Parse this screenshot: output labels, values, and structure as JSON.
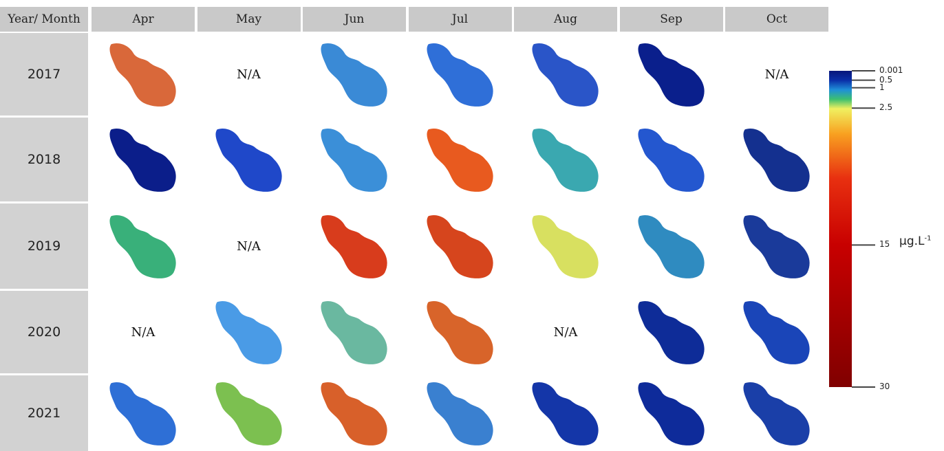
{
  "table": {
    "corner": "Year/ Month",
    "columns": [
      "Apr",
      "May",
      "Jun",
      "Jul",
      "Aug",
      "Sep",
      "Oct"
    ],
    "rows": [
      {
        "year": "2017",
        "cells": [
          {
            "color": "#d9683a"
          },
          "N/A",
          {
            "color": "#3a8ad6"
          },
          {
            "color": "#2f6fd8"
          },
          {
            "color": "#2a55c8"
          },
          {
            "color": "#0a1f8c"
          },
          "N/A"
        ]
      },
      {
        "year": "2018",
        "cells": [
          {
            "color": "#0b1e8a"
          },
          {
            "color": "#1f48c9"
          },
          {
            "color": "#3b8fd8"
          },
          {
            "color": "#e85a1f"
          },
          {
            "color": "#3aa8b0"
          },
          {
            "color": "#2457cf"
          },
          {
            "color": "#14308f"
          }
        ]
      },
      {
        "year": "2019",
        "cells": [
          {
            "color": "#39b07a"
          },
          "N/A",
          {
            "color": "#d83c1c"
          },
          {
            "color": "#d6451d"
          },
          {
            "color": "#d8e060"
          },
          {
            "color": "#2f8bc0"
          },
          {
            "color": "#1a3a9a"
          }
        ]
      },
      {
        "year": "2020",
        "cells": [
          "N/A",
          {
            "color": "#4a9be6"
          },
          {
            "color": "#6ab8a0"
          },
          {
            "color": "#d8642a"
          },
          "N/A",
          {
            "color": "#0e2c98"
          },
          {
            "color": "#1a45b8"
          }
        ]
      },
      {
        "year": "2021",
        "cells": [
          {
            "color": "#2e6fd6"
          },
          {
            "color": "#7cc050"
          },
          {
            "color": "#d8602a"
          },
          {
            "color": "#3a80d0"
          },
          {
            "color": "#1436a8"
          },
          {
            "color": "#0e2b9a"
          },
          {
            "color": "#1a3fa8"
          }
        ]
      }
    ]
  },
  "colorbar": {
    "ticks": [
      0.001,
      0.5,
      1,
      2.5,
      15,
      30
    ],
    "unit": "μg.L",
    "unit_exponent": "-1"
  }
}
